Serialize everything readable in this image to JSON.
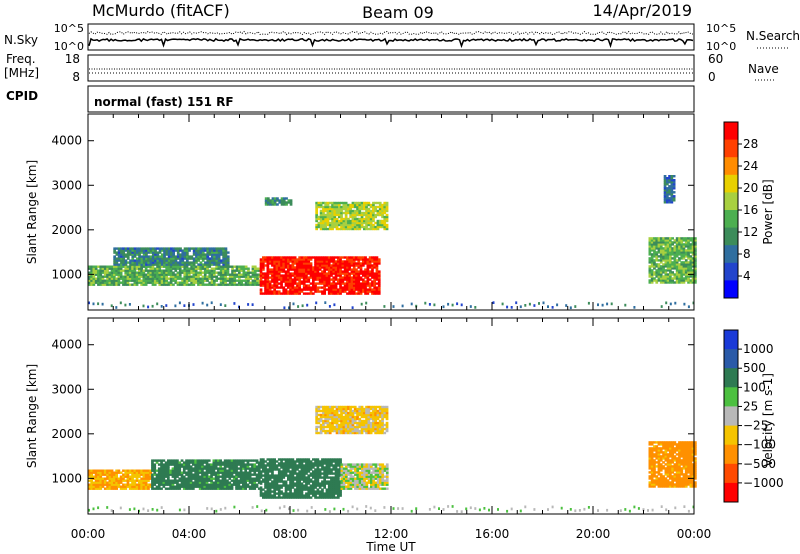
{
  "header": {
    "station": "McMurdo (fitACF)",
    "beam": "Beam 09",
    "date": "14/Apr/2019"
  },
  "noise_panel": {
    "left_label": "N.Sky",
    "right_label": "N.Search",
    "left_ticks": [
      "10^5",
      "10^0"
    ],
    "right_ticks": [
      "10^5",
      "10^0"
    ]
  },
  "freq_panel": {
    "left_label_line1": "Freq.",
    "left_label_line2": "[MHz]",
    "right_label": "Nave",
    "left_ticks": [
      "18",
      "8"
    ],
    "right_ticks": [
      "60",
      "0"
    ]
  },
  "cpid": {
    "label": "CPID",
    "text": "normal (fast) 151 RF"
  },
  "colors": {
    "power": [
      "#0000ff",
      "#2244cc",
      "#2f6e9f",
      "#3c8c5a",
      "#4caf50",
      "#a8d040",
      "#e8d000",
      "#ff8c00",
      "#ff4000",
      "#ff0000"
    ],
    "velocity": [
      "#1a3ad8",
      "#2a5aa8",
      "#2e7a52",
      "#4cc040",
      "#b8b8b8",
      "#f5c400",
      "#ff9000",
      "#ff4a00",
      "#ff0000"
    ]
  },
  "chart_data": [
    {
      "type": "heatmap",
      "name": "Power",
      "ylabel": "Slant Range [km]",
      "yticks": [
        1000,
        2000,
        3000,
        4000
      ],
      "ylim": [
        200,
        4600
      ],
      "xlim_hours": [
        0,
        24
      ],
      "colorbar": {
        "label": "Power [dB]",
        "ticks": [
          "4",
          "8",
          "12",
          "16",
          "20",
          "24",
          "28"
        ],
        "range": [
          0,
          32
        ]
      },
      "regions": [
        {
          "h0": 0.0,
          "h1": 6.8,
          "r0": 750,
          "r1": 1200,
          "value": 14
        },
        {
          "h0": 1.0,
          "h1": 5.5,
          "r0": 1200,
          "r1": 1600,
          "value": 10
        },
        {
          "h0": 6.8,
          "h1": 11.5,
          "r0": 550,
          "r1": 1400,
          "value": 30
        },
        {
          "h0": 9.0,
          "h1": 11.8,
          "r0": 2000,
          "r1": 2600,
          "value": 18
        },
        {
          "h0": 7.0,
          "h1": 8.0,
          "r0": 2550,
          "r1": 2700,
          "value": 11
        },
        {
          "h0": 22.2,
          "h1": 24.0,
          "r0": 800,
          "r1": 1800,
          "value": 15
        },
        {
          "h0": 22.8,
          "h1": 23.2,
          "r0": 2600,
          "r1": 3200,
          "value": 8
        }
      ]
    },
    {
      "type": "heatmap",
      "name": "Velocity",
      "ylabel": "Slant Range [km]",
      "yticks": [
        1000,
        2000,
        3000,
        4000
      ],
      "ylim": [
        200,
        4600
      ],
      "xlim_hours": [
        0,
        24
      ],
      "xlabel": "Time UT",
      "xticks": [
        "00:00",
        "04:00",
        "08:00",
        "12:00",
        "16:00",
        "20:00",
        "00:00"
      ],
      "colorbar": {
        "label": "Velocity [m s-1]",
        "ticks": [
          "1000",
          "500",
          "100",
          "25",
          "-25",
          "-100",
          "-500",
          "-1000"
        ],
        "range": [
          -1000,
          1000
        ]
      },
      "regions": [
        {
          "h0": 0.0,
          "h1": 2.5,
          "r0": 750,
          "r1": 1200,
          "value": -100
        },
        {
          "h0": 2.5,
          "h1": 6.8,
          "r0": 750,
          "r1": 1400,
          "value": 150
        },
        {
          "h0": 6.8,
          "h1": 10.0,
          "r0": 550,
          "r1": 1450,
          "value": 300
        },
        {
          "h0": 10.0,
          "h1": 11.8,
          "r0": 750,
          "r1": 1300,
          "value": 0
        },
        {
          "h0": 9.0,
          "h1": 11.8,
          "r0": 2000,
          "r1": 2600,
          "value": -50
        },
        {
          "h0": 22.2,
          "h1": 24.0,
          "r0": 800,
          "r1": 1800,
          "value": -150
        }
      ]
    }
  ]
}
